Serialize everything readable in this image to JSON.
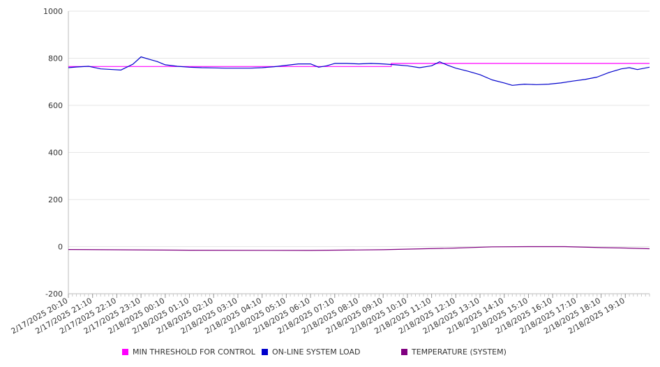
{
  "chart_data": {
    "type": "line",
    "title": "",
    "xlabel": "",
    "ylabel": "",
    "ylim": [
      -200,
      1000
    ],
    "yticks": [
      -200,
      0,
      200,
      400,
      600,
      800,
      1000
    ],
    "grid": true,
    "legend_position": "bottom",
    "x_start": "2/17/2025 20:10",
    "x_end": "2/18/2025 20:10",
    "x_tick_labels": [
      "2/17/2025 20:10",
      "2/17/2025 21:10",
      "2/17/2025 22:10",
      "2/17/2025 23:10",
      "2/18/2025 00:10",
      "2/18/2025 01:10",
      "2/18/2025 02:10",
      "2/18/2025 03:10",
      "2/18/2025 04:10",
      "2/18/2025 05:10",
      "2/18/2025 06:10",
      "2/18/2025 07:10",
      "2/18/2025 08:10",
      "2/18/2025 09:10",
      "2/18/2025 10:10",
      "2/18/2025 11:10",
      "2/18/2025 12:10",
      "2/18/2025 13:10",
      "2/18/2025 14:10",
      "2/18/2025 15:10",
      "2/18/2025 16:10",
      "2/18/2025 17:10",
      "2/18/2025 18:10",
      "2/18/2025 19:10"
    ],
    "series": [
      {
        "name": "MIN THRESHOLD FOR CONTROL",
        "color": "#ff00ff",
        "points": [
          [
            "2/17/2025 20:10",
            765
          ],
          [
            "2/18/2025 09:30",
            765
          ],
          [
            "2/18/2025 09:30",
            778
          ],
          [
            "2/18/2025 20:10",
            778
          ]
        ]
      },
      {
        "name": "ON-LINE SYSTEM LOAD",
        "color": "#0000cc",
        "points": [
          [
            "2/17/2025 20:10",
            760
          ],
          [
            "2/17/2025 20:30",
            763
          ],
          [
            "2/17/2025 21:00",
            766
          ],
          [
            "2/17/2025 21:30",
            755
          ],
          [
            "2/17/2025 22:00",
            752
          ],
          [
            "2/17/2025 22:20",
            750
          ],
          [
            "2/17/2025 22:50",
            775
          ],
          [
            "2/17/2025 23:10",
            806
          ],
          [
            "2/17/2025 23:30",
            796
          ],
          [
            "2/17/2025 23:50",
            786
          ],
          [
            "2/18/2025 00:10",
            772
          ],
          [
            "2/18/2025 00:40",
            766
          ],
          [
            "2/18/2025 01:10",
            762
          ],
          [
            "2/18/2025 01:40",
            760
          ],
          [
            "2/18/2025 02:10",
            759
          ],
          [
            "2/18/2025 02:40",
            758
          ],
          [
            "2/18/2025 03:10",
            758
          ],
          [
            "2/18/2025 03:40",
            758
          ],
          [
            "2/18/2025 04:10",
            760
          ],
          [
            "2/18/2025 04:40",
            764
          ],
          [
            "2/18/2025 05:10",
            770
          ],
          [
            "2/18/2025 05:40",
            776
          ],
          [
            "2/18/2025 06:10",
            776
          ],
          [
            "2/18/2025 06:30",
            762
          ],
          [
            "2/18/2025 06:50",
            768
          ],
          [
            "2/18/2025 07:10",
            778
          ],
          [
            "2/18/2025 07:40",
            778
          ],
          [
            "2/18/2025 08:10",
            776
          ],
          [
            "2/18/2025 08:40",
            778
          ],
          [
            "2/18/2025 09:10",
            776
          ],
          [
            "2/18/2025 09:40",
            772
          ],
          [
            "2/18/2025 10:10",
            768
          ],
          [
            "2/18/2025 10:40",
            760
          ],
          [
            "2/18/2025 11:10",
            768
          ],
          [
            "2/18/2025 11:30",
            785
          ],
          [
            "2/18/2025 11:50",
            770
          ],
          [
            "2/18/2025 12:10",
            758
          ],
          [
            "2/18/2025 12:40",
            745
          ],
          [
            "2/18/2025 13:10",
            730
          ],
          [
            "2/18/2025 13:40",
            708
          ],
          [
            "2/18/2025 14:10",
            695
          ],
          [
            "2/18/2025 14:30",
            685
          ],
          [
            "2/18/2025 15:00",
            690
          ],
          [
            "2/18/2025 15:30",
            688
          ],
          [
            "2/18/2025 16:00",
            690
          ],
          [
            "2/18/2025 16:30",
            695
          ],
          [
            "2/18/2025 17:00",
            703
          ],
          [
            "2/18/2025 17:30",
            710
          ],
          [
            "2/18/2025 18:00",
            720
          ],
          [
            "2/18/2025 18:30",
            740
          ],
          [
            "2/18/2025 19:00",
            755
          ],
          [
            "2/18/2025 19:20",
            760
          ],
          [
            "2/18/2025 19:40",
            752
          ],
          [
            "2/18/2025 20:10",
            762
          ]
        ]
      },
      {
        "name": "TEMPERATURE (SYSTEM)",
        "color": "#800080",
        "points": [
          [
            "2/17/2025 20:10",
            -12
          ],
          [
            "2/18/2025 01:10",
            -15
          ],
          [
            "2/18/2025 06:10",
            -16
          ],
          [
            "2/18/2025 09:10",
            -13
          ],
          [
            "2/18/2025 12:10",
            -6
          ],
          [
            "2/18/2025 13:40",
            -1
          ],
          [
            "2/18/2025 15:10",
            0
          ],
          [
            "2/18/2025 16:40",
            0
          ],
          [
            "2/18/2025 18:10",
            -4
          ],
          [
            "2/18/2025 19:10",
            -6
          ],
          [
            "2/18/2025 20:10",
            -9
          ]
        ]
      }
    ]
  }
}
